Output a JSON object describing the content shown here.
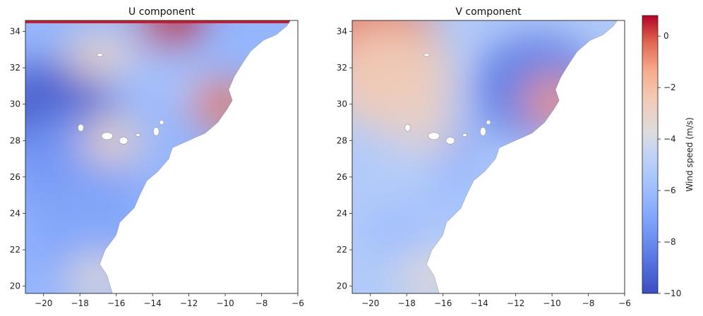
{
  "chart_data": [
    {
      "type": "heatmap",
      "title": "U component",
      "xlim": [
        -21,
        -6
      ],
      "ylim": [
        19.6,
        34.6
      ],
      "x_ticks": [
        -20,
        -18,
        -16,
        -14,
        -12,
        -10,
        -8,
        -6
      ],
      "x_tick_labels": [
        "−20",
        "−18",
        "−16",
        "−14",
        "−12",
        "−10",
        "−8",
        "−6"
      ],
      "y_ticks": [
        20,
        22,
        24,
        26,
        28,
        30,
        32,
        34
      ],
      "y_tick_labels": [
        "20",
        "22",
        "24",
        "26",
        "28",
        "30",
        "32",
        "34"
      ],
      "regions": [
        {
          "lon": -19.5,
          "lat": 29.5,
          "value": -9.5
        },
        {
          "lon": -18.5,
          "lat": 26.5,
          "value": -7.5
        },
        {
          "lon": -17.5,
          "lat": 23.0,
          "value": -7.0
        },
        {
          "lon": -15.5,
          "lat": 32.5,
          "value": -5.5
        },
        {
          "lon": -12.5,
          "lat": 31.0,
          "value": -5.5
        },
        {
          "lon": -10.2,
          "lat": 30.0,
          "value": -0.5
        },
        {
          "lon": -16.2,
          "lat": 28.0,
          "value": -3.0
        },
        {
          "lon": -17.0,
          "lat": 32.7,
          "value": -3.0
        },
        {
          "lon": -13.0,
          "lat": 34.45,
          "value": 0.5
        },
        {
          "lon": -17.0,
          "lat": 20.4,
          "value": -3.5
        }
      ]
    },
    {
      "type": "heatmap",
      "title": "V component",
      "xlim": [
        -21,
        -6
      ],
      "ylim": [
        19.6,
        34.6
      ],
      "x_ticks": [
        -20,
        -18,
        -16,
        -14,
        -12,
        -10,
        -8,
        -6
      ],
      "x_tick_labels": [
        "−20",
        "−18",
        "−16",
        "−14",
        "−12",
        "−10",
        "−8",
        "−6"
      ],
      "y_ticks": [
        20,
        22,
        24,
        26,
        28,
        30,
        32,
        34
      ],
      "y_tick_labels": [
        "20",
        "22",
        "24",
        "26",
        "28",
        "30",
        "32",
        "34"
      ],
      "regions": [
        {
          "lon": -20.0,
          "lat": 33.8,
          "value": -0.5
        },
        {
          "lon": -19.0,
          "lat": 31.5,
          "value": -2.5
        },
        {
          "lon": -10.8,
          "lat": 30.9,
          "value": -8.5
        },
        {
          "lon": -9.9,
          "lat": 30.2,
          "value": -1.0
        },
        {
          "lon": -15.5,
          "lat": 28.0,
          "value": -7.0
        },
        {
          "lon": -17.0,
          "lat": 28.5,
          "value": -3.0
        },
        {
          "lon": -15.5,
          "lat": 25.5,
          "value": -6.0
        },
        {
          "lon": -18.5,
          "lat": 23.0,
          "value": -6.0
        },
        {
          "lon": -18.0,
          "lat": 26.5,
          "value": -5.0
        },
        {
          "lon": -16.7,
          "lat": 20.5,
          "value": -3.5
        }
      ]
    }
  ],
  "colorbar": {
    "label": "Wind speed (m/s)",
    "range": [
      -10,
      0.8
    ],
    "ticks": [
      0,
      -2,
      -4,
      -6,
      -8,
      -10
    ],
    "tick_labels": [
      "0",
      "−2",
      "−4",
      "−6",
      "−8",
      "−10"
    ],
    "colormap": "coolwarm",
    "low_color": "#3b4cc0",
    "mid_color": "#dddddd",
    "high_color": "#b40426"
  }
}
